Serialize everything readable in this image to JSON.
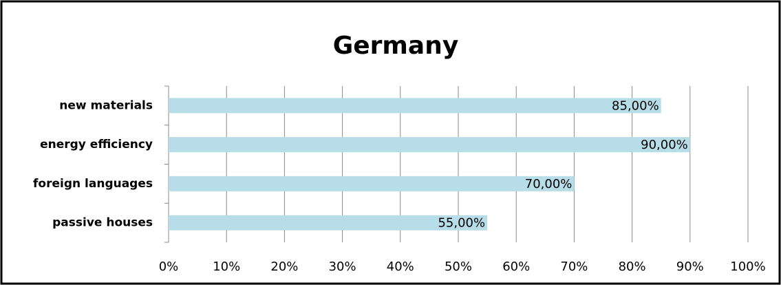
{
  "chart_data": {
    "type": "barh",
    "title": "Germany",
    "categories": [
      "new materials",
      "energy efficiency",
      "foreign languages",
      "passive houses"
    ],
    "values": [
      85,
      90,
      70,
      55
    ],
    "value_labels": [
      "85,00%",
      "90,00%",
      "70,00%",
      "55,00%"
    ],
    "color": "#b7dde8",
    "xlim": [
      0,
      100
    ],
    "xticks": [
      {
        "value": 0,
        "label": "0%"
      },
      {
        "value": 10,
        "label": "10%"
      },
      {
        "value": 20,
        "label": "20%"
      },
      {
        "value": 30,
        "label": "30%"
      },
      {
        "value": 40,
        "label": "40%"
      },
      {
        "value": 50,
        "label": "50%"
      },
      {
        "value": 60,
        "label": "60%"
      },
      {
        "value": 70,
        "label": "70%"
      },
      {
        "value": 80,
        "label": "80%"
      },
      {
        "value": 90,
        "label": "90%"
      },
      {
        "value": 100,
        "label": "100%"
      }
    ],
    "grid": true
  }
}
